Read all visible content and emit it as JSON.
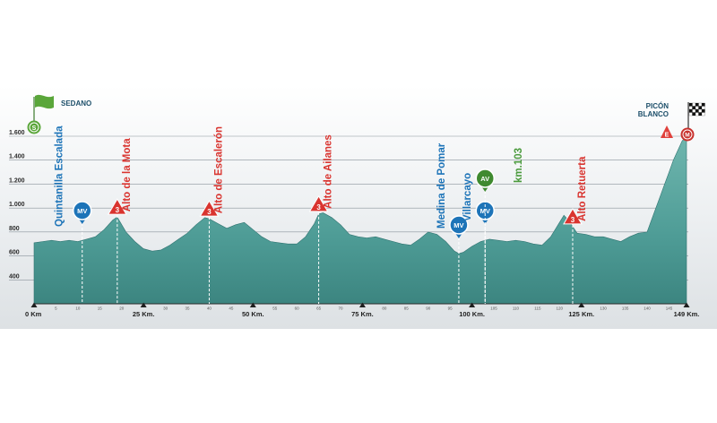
{
  "chart_data": {
    "type": "area",
    "title": "",
    "xlabel": "",
    "ylabel": "",
    "xlim": [
      0,
      149
    ],
    "ylim": [
      200,
      1600
    ],
    "grid": true,
    "y_ticks": [
      400,
      600,
      800,
      1000,
      1200,
      1400,
      1600
    ],
    "y_tick_labels": [
      "400",
      "600",
      "800",
      "1.000",
      "1.200",
      "1.400",
      "1.600"
    ],
    "x_major_ticks": [
      {
        "km": 0,
        "label": "0 Km"
      },
      {
        "km": 25,
        "label": "25 Km."
      },
      {
        "km": 50,
        "label": "50 Km."
      },
      {
        "km": 75,
        "label": "75 Km."
      },
      {
        "km": 100,
        "label": "100 Km."
      },
      {
        "km": 125,
        "label": "125 Km."
      },
      {
        "km": 149,
        "label": "149 Km."
      }
    ],
    "x_minor_ticks": [
      5,
      10,
      15,
      20,
      30,
      35,
      40,
      45,
      55,
      60,
      65,
      70,
      80,
      85,
      90,
      95,
      105,
      110,
      115,
      120,
      130,
      135,
      140,
      145
    ],
    "series": [
      {
        "x": [
          0,
          2,
          4,
          6,
          8,
          10,
          12,
          14,
          16,
          18,
          19,
          21,
          23,
          25,
          27,
          29,
          31,
          33,
          35,
          37,
          39,
          40,
          42,
          44,
          46,
          48,
          50,
          52,
          54,
          56,
          58,
          60,
          62,
          64,
          65,
          66,
          68,
          70,
          72,
          74,
          76,
          78,
          80,
          82,
          84,
          86,
          88,
          90,
          92,
          94,
          96,
          97,
          98,
          100,
          102,
          104,
          106,
          108,
          110,
          112,
          114,
          116,
          118,
          120,
          121,
          122,
          124,
          126,
          128,
          130,
          132,
          134,
          136,
          138,
          140,
          141,
          142,
          143,
          144,
          145,
          146,
          147,
          148,
          149
        ],
        "y": [
          710,
          720,
          730,
          720,
          730,
          720,
          740,
          760,
          820,
          900,
          925,
          800,
          720,
          660,
          640,
          650,
          690,
          740,
          790,
          860,
          920,
          910,
          870,
          830,
          860,
          880,
          820,
          760,
          720,
          710,
          700,
          700,
          760,
          870,
          950,
          960,
          920,
          860,
          780,
          760,
          750,
          760,
          740,
          720,
          700,
          690,
          740,
          800,
          780,
          720,
          640,
          620,
          630,
          680,
          720,
          740,
          730,
          720,
          730,
          720,
          700,
          690,
          760,
          880,
          940,
          900,
          790,
          780,
          760,
          760,
          740,
          720,
          760,
          790,
          800,
          900,
          1000,
          1100,
          1200,
          1300,
          1400,
          1480,
          1560,
          1600
        ]
      }
    ],
    "points": [
      {
        "km": 11,
        "label": "Quintanilla Escalada",
        "type": "MV",
        "color": "#1d74b8"
      },
      {
        "km": 19,
        "label": "Alto de la Mota",
        "type": "3",
        "color": "#d9342f"
      },
      {
        "km": 40,
        "label": "Alto de Escalerón",
        "type": "3",
        "color": "#d9342f"
      },
      {
        "km": 65,
        "label": "Alto de Ailanes",
        "type": "3",
        "color": "#d9342f"
      },
      {
        "km": 97,
        "label": "Medina de Pomar",
        "type": "MV",
        "color": "#1d74b8"
      },
      {
        "km": 103,
        "label": "Villarcayo",
        "type": "MV",
        "color": "#1d74b8"
      },
      {
        "km": 103,
        "label": "",
        "type": "AV",
        "color": "#3f8a2f"
      },
      {
        "km": 123,
        "label": "Alto Retuerta",
        "type": "3",
        "color": "#d9342f"
      }
    ]
  },
  "markers": {
    "start": {
      "badge": "S",
      "town": "SEDANO"
    },
    "finish": {
      "badge": "M",
      "category": "E",
      "town_line1": "PICÓN",
      "town_line2": "BLANCO"
    }
  },
  "annotations": {
    "km_note": "km.103"
  },
  "colors": {
    "profile_fill": "#55a39c",
    "climb": "#d9342f",
    "town": "#1d74b8",
    "feed": "#3f8a2f",
    "start": "#5aa63a"
  }
}
